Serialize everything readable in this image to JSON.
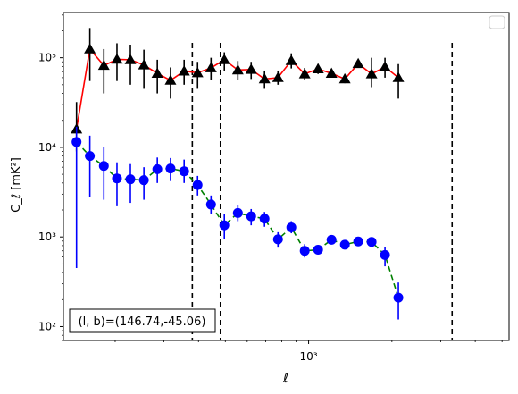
{
  "chart_data": {
    "type": "scatter",
    "xscale": "log",
    "yscale": "log",
    "xlim": [
      130,
      5300
    ],
    "ylim": [
      70,
      320000
    ],
    "xlabel": "ℓ",
    "ylabel": "C_ℓ [mK²]",
    "xticks": [
      {
        "value": 1000,
        "label": "10³"
      }
    ],
    "yticks": [
      {
        "value": 100,
        "label": "10²"
      },
      {
        "value": 1000,
        "label": "10³"
      },
      {
        "value": 10000,
        "label": "10⁴"
      },
      {
        "value": 100000,
        "label": "10⁵"
      }
    ],
    "annotation": "(l, b)=(146.74,-45.06)",
    "legend": {
      "placement": "top-right",
      "entries": []
    },
    "vlines": [
      380,
      480,
      3300
    ],
    "series": [
      {
        "marker": "triangle",
        "color": "#000000",
        "line_color": "#ff0000",
        "line_style": "solid",
        "points": [
          {
            "x": 145,
            "y": 16000,
            "lo": 9000,
            "hi": 32000
          },
          {
            "x": 162,
            "y": 125000,
            "lo": 55000,
            "hi": 215000
          },
          {
            "x": 182,
            "y": 82000,
            "lo": 40000,
            "hi": 125000
          },
          {
            "x": 203,
            "y": 96000,
            "lo": 55000,
            "hi": 145000
          },
          {
            "x": 227,
            "y": 95000,
            "lo": 50000,
            "hi": 140000
          },
          {
            "x": 254,
            "y": 83000,
            "lo": 45000,
            "hi": 123000
          },
          {
            "x": 284,
            "y": 67000,
            "lo": 40000,
            "hi": 95000
          },
          {
            "x": 317,
            "y": 56000,
            "lo": 35000,
            "hi": 78000
          },
          {
            "x": 355,
            "y": 71000,
            "lo": 50000,
            "hi": 95000
          },
          {
            "x": 397,
            "y": 68000,
            "lo": 45000,
            "hi": 90000
          },
          {
            "x": 444,
            "y": 77000,
            "lo": 56000,
            "hi": 100000
          },
          {
            "x": 496,
            "y": 95000,
            "lo": 72000,
            "hi": 115000
          },
          {
            "x": 555,
            "y": 73000,
            "lo": 56000,
            "hi": 92000
          },
          {
            "x": 620,
            "y": 74000,
            "lo": 58000,
            "hi": 90000
          },
          {
            "x": 693,
            "y": 58000,
            "lo": 45000,
            "hi": 72000
          },
          {
            "x": 775,
            "y": 60000,
            "lo": 50000,
            "hi": 72000
          },
          {
            "x": 866,
            "y": 93000,
            "lo": 76000,
            "hi": 112000
          },
          {
            "x": 968,
            "y": 66000,
            "lo": 57000,
            "hi": 77000
          },
          {
            "x": 1082,
            "y": 75000,
            "lo": 66000,
            "hi": 85000
          },
          {
            "x": 1210,
            "y": 67000,
            "lo": 60000,
            "hi": 75000
          },
          {
            "x": 1352,
            "y": 58000,
            "lo": 52000,
            "hi": 64000
          },
          {
            "x": 1511,
            "y": 86000,
            "lo": 79000,
            "hi": 93000
          },
          {
            "x": 1689,
            "y": 66000,
            "lo": 47000,
            "hi": 100000
          },
          {
            "x": 1888,
            "y": 79000,
            "lo": 60000,
            "hi": 100000
          },
          {
            "x": 2110,
            "y": 60000,
            "lo": 35000,
            "hi": 85000
          }
        ]
      },
      {
        "marker": "circle",
        "color": "#0000ff",
        "line_color": "#008000",
        "line_style": "dashed",
        "points": [
          {
            "x": 145,
            "y": 11500,
            "lo": 450,
            "hi": 17000
          },
          {
            "x": 162,
            "y": 8000,
            "lo": 2800,
            "hi": 13500
          },
          {
            "x": 182,
            "y": 6200,
            "lo": 2600,
            "hi": 10000
          },
          {
            "x": 203,
            "y": 4500,
            "lo": 2200,
            "hi": 6800
          },
          {
            "x": 227,
            "y": 4400,
            "lo": 2400,
            "hi": 6500
          },
          {
            "x": 254,
            "y": 4300,
            "lo": 2600,
            "hi": 6000
          },
          {
            "x": 284,
            "y": 5700,
            "lo": 4000,
            "hi": 7700
          },
          {
            "x": 317,
            "y": 5800,
            "lo": 4200,
            "hi": 7600
          },
          {
            "x": 355,
            "y": 5400,
            "lo": 4000,
            "hi": 7300
          },
          {
            "x": 397,
            "y": 3800,
            "lo": 2900,
            "hi": 4800
          },
          {
            "x": 444,
            "y": 2300,
            "lo": 1800,
            "hi": 2900
          },
          {
            "x": 496,
            "y": 1350,
            "lo": 950,
            "hi": 1800
          },
          {
            "x": 555,
            "y": 1850,
            "lo": 1500,
            "hi": 2250
          },
          {
            "x": 620,
            "y": 1700,
            "lo": 1350,
            "hi": 2050
          },
          {
            "x": 693,
            "y": 1600,
            "lo": 1300,
            "hi": 1900
          },
          {
            "x": 775,
            "y": 940,
            "lo": 760,
            "hi": 1130
          },
          {
            "x": 866,
            "y": 1280,
            "lo": 1100,
            "hi": 1500
          },
          {
            "x": 968,
            "y": 700,
            "lo": 590,
            "hi": 830
          },
          {
            "x": 1082,
            "y": 720,
            "lo": 640,
            "hi": 810
          },
          {
            "x": 1210,
            "y": 930,
            "lo": 860,
            "hi": 1000
          },
          {
            "x": 1352,
            "y": 820,
            "lo": 760,
            "hi": 880
          },
          {
            "x": 1511,
            "y": 890,
            "lo": 840,
            "hi": 940
          },
          {
            "x": 1689,
            "y": 880,
            "lo": 800,
            "hi": 960
          },
          {
            "x": 1888,
            "y": 630,
            "lo": 470,
            "hi": 780
          },
          {
            "x": 2110,
            "y": 210,
            "lo": 120,
            "hi": 310
          }
        ]
      }
    ]
  }
}
